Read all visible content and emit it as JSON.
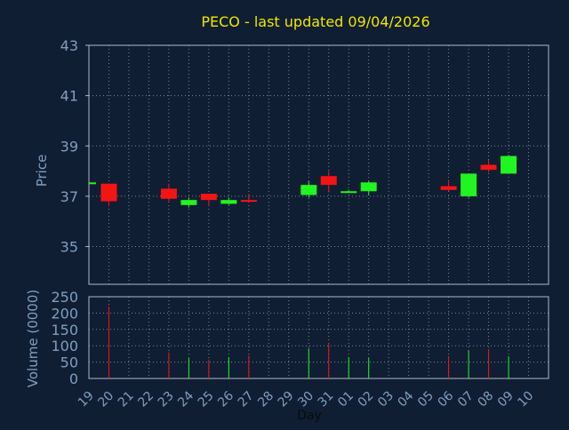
{
  "colors": {
    "background": "#0f1e33",
    "title": "#f2e600",
    "axis_text": "#7f9fbf",
    "frame": "#b0b8c8",
    "grid": "#c8ccd6",
    "up": "#21f521",
    "down": "#f51414"
  },
  "chart_data": [
    {
      "type": "candlestick",
      "title": "PECO - last updated 09/04/2026",
      "ylabel": "Price",
      "ylim": [
        33.5,
        43
      ],
      "y_ticks": [
        35,
        37,
        39,
        41,
        43
      ],
      "grid": true,
      "categories": [
        "19",
        "20",
        "21",
        "22",
        "23",
        "24",
        "25",
        "26",
        "27",
        "28",
        "29",
        "30",
        "31",
        "01",
        "02",
        "03",
        "04",
        "05",
        "06",
        "07",
        "08",
        "09",
        "10"
      ],
      "series": [
        {
          "x": "19",
          "open": 37.55,
          "high": 37.55,
          "low": 37.55,
          "close": 37.55
        },
        {
          "x": "20",
          "open": 37.5,
          "high": 37.5,
          "low": 36.6,
          "close": 36.8
        },
        {
          "x": "23",
          "open": 37.3,
          "high": 37.5,
          "low": 36.8,
          "close": 36.9
        },
        {
          "x": "24",
          "open": 36.65,
          "high": 36.95,
          "low": 36.55,
          "close": 36.85
        },
        {
          "x": "25",
          "open": 37.1,
          "high": 37.1,
          "low": 36.6,
          "close": 36.85
        },
        {
          "x": "26",
          "open": 36.7,
          "high": 36.95,
          "low": 36.65,
          "close": 36.85
        },
        {
          "x": "27",
          "open": 36.85,
          "high": 37.1,
          "low": 36.75,
          "close": 36.78
        },
        {
          "x": "30",
          "open": 37.05,
          "high": 37.6,
          "low": 36.95,
          "close": 37.45
        },
        {
          "x": "31",
          "open": 37.8,
          "high": 38.0,
          "low": 37.15,
          "close": 37.45
        },
        {
          "x": "01",
          "open": 37.15,
          "high": 37.25,
          "low": 37.15,
          "close": 37.2
        },
        {
          "x": "02",
          "open": 37.2,
          "high": 37.6,
          "low": 37.05,
          "close": 37.55
        },
        {
          "x": "06",
          "open": 37.4,
          "high": 37.65,
          "low": 37.2,
          "close": 37.25
        },
        {
          "x": "07",
          "open": 37.0,
          "high": 37.9,
          "low": 36.95,
          "close": 37.9
        },
        {
          "x": "08",
          "open": 38.25,
          "high": 38.45,
          "low": 37.95,
          "close": 38.05
        },
        {
          "x": "09",
          "open": 37.9,
          "high": 38.65,
          "low": 37.9,
          "close": 38.6
        }
      ]
    },
    {
      "type": "bar",
      "ylabel": "Volume (0000)",
      "xlabel": "Day",
      "ylim": [
        0,
        250
      ],
      "y_ticks": [
        0,
        50,
        100,
        150,
        200,
        250
      ],
      "grid": true,
      "categories": [
        "19",
        "20",
        "21",
        "22",
        "23",
        "24",
        "25",
        "26",
        "27",
        "28",
        "29",
        "30",
        "31",
        "01",
        "02",
        "03",
        "04",
        "05",
        "06",
        "07",
        "08",
        "09",
        "10"
      ],
      "series": [
        {
          "x": "20",
          "value": 220,
          "direction": "down"
        },
        {
          "x": "23",
          "value": 80,
          "direction": "down"
        },
        {
          "x": "24",
          "value": 62,
          "direction": "up"
        },
        {
          "x": "25",
          "value": 58,
          "direction": "down"
        },
        {
          "x": "26",
          "value": 65,
          "direction": "up"
        },
        {
          "x": "27",
          "value": 70,
          "direction": "down"
        },
        {
          "x": "30",
          "value": 92,
          "direction": "up"
        },
        {
          "x": "31",
          "value": 108,
          "direction": "down"
        },
        {
          "x": "01",
          "value": 65,
          "direction": "up"
        },
        {
          "x": "02",
          "value": 62,
          "direction": "up"
        },
        {
          "x": "06",
          "value": 68,
          "direction": "down"
        },
        {
          "x": "07",
          "value": 85,
          "direction": "up"
        },
        {
          "x": "08",
          "value": 90,
          "direction": "down"
        },
        {
          "x": "09",
          "value": 68,
          "direction": "up"
        }
      ]
    }
  ]
}
